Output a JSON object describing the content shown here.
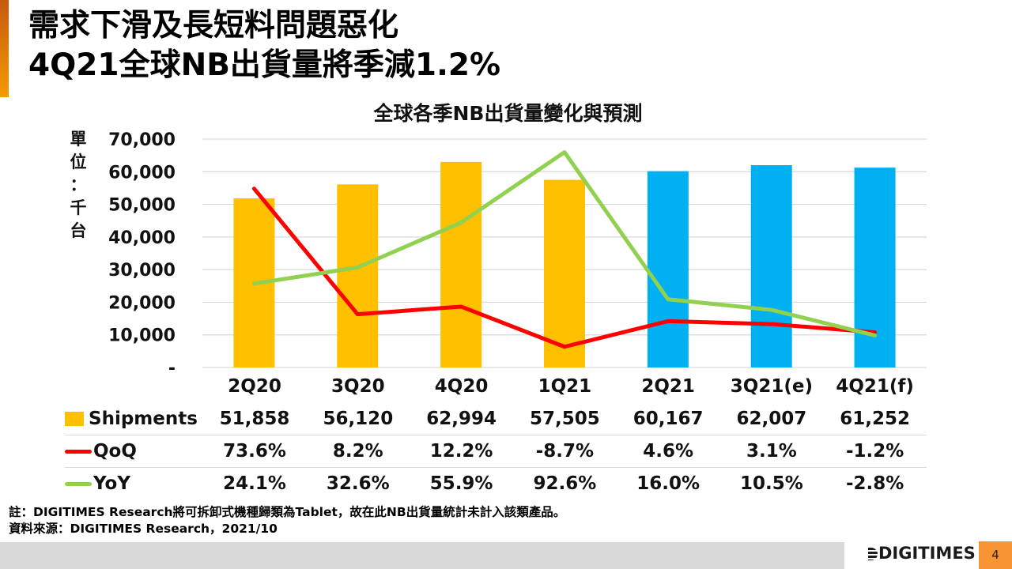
{
  "headline": {
    "line1": "需求下滑及長短料問題惡化",
    "line2": "4Q21全球NB出貨量將季減1.2%"
  },
  "colors": {
    "accent": "#f59a00",
    "actual_bar": "#ffc000",
    "forecast_bar": "#00b0f0",
    "qoq_line": "#ff0000",
    "yoy_line": "#92d050",
    "gridline": "#d9d9d9",
    "page_badge": "#f79433"
  },
  "chart_data": {
    "type": "bar",
    "title": "全球各季NB出貨量變化與預測",
    "ylabel": "單位：千台",
    "ylabel_chars": [
      "單",
      "位",
      "：",
      "千",
      "台"
    ],
    "xlabel": "",
    "ylim": [
      0,
      70000
    ],
    "yticks": [
      0,
      10000,
      20000,
      30000,
      40000,
      50000,
      60000,
      70000
    ],
    "ytick_labels": [
      "-",
      "10,000",
      "20,000",
      "30,000",
      "40,000",
      "50,000",
      "60,000",
      "70,000"
    ],
    "grid": true,
    "categories": [
      "2Q20",
      "3Q20",
      "4Q20",
      "1Q21",
      "2Q21",
      "3Q21(e)",
      "4Q21(f)"
    ],
    "series": [
      {
        "name": "Shipments",
        "type": "bar",
        "values": [
          51858,
          56120,
          62994,
          57505,
          60167,
          62007,
          61252
        ],
        "display": [
          "51,858",
          "56,120",
          "62,994",
          "57,505",
          "60,167",
          "62,007",
          "61,252"
        ],
        "bar_colors": [
          "#ffc000",
          "#ffc000",
          "#ffc000",
          "#ffc000",
          "#00b0f0",
          "#00b0f0",
          "#00b0f0"
        ]
      },
      {
        "name": "QoQ",
        "type": "line",
        "axis": "secondary",
        "unit": "%",
        "values": [
          73.6,
          8.2,
          12.2,
          -8.7,
          4.6,
          3.1,
          -1.2
        ],
        "display": [
          "73.6%",
          "8.2%",
          "12.2%",
          "-8.7%",
          "4.6%",
          "3.1%",
          "-1.2%"
        ],
        "color": "#ff0000"
      },
      {
        "name": "YoY",
        "type": "line",
        "axis": "secondary",
        "unit": "%",
        "values": [
          24.1,
          32.6,
          55.9,
          92.6,
          16.0,
          10.5,
          -2.8
        ],
        "display": [
          "24.1%",
          "32.6%",
          "55.9%",
          "92.6%",
          "16.0%",
          "10.5%",
          "-2.8%"
        ],
        "color": "#92d050"
      }
    ],
    "secondary_axis_visible": false,
    "legend": "data-table-below"
  },
  "note": {
    "line1": "註：DIGITIMES Research將可拆卸式機種歸類為Tablet，故在此NB出貨量統計未計入該類產品。",
    "line2": "資料來源：DIGITIMES Research，2021/10"
  },
  "footer": {
    "logo": "DIGITIMES",
    "page_number": "4"
  }
}
